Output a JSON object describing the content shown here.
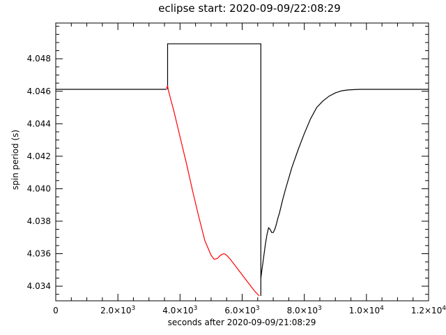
{
  "chart_data": {
    "type": "line",
    "title": "eclipse start: 2020-09-09/22:08:29",
    "xlabel": "seconds after 2020-09-09/21:08:29",
    "ylabel": "spin period (s)",
    "xlim": [
      0,
      12000
    ],
    "ylim": [
      4.0331,
      4.0502
    ],
    "x_ticks": [
      {
        "value": 0,
        "label": "0",
        "sup": ""
      },
      {
        "value": 2000,
        "label": "2.0×10",
        "sup": "3"
      },
      {
        "value": 4000,
        "label": "4.0×10",
        "sup": "3"
      },
      {
        "value": 6000,
        "label": "6.0×10",
        "sup": "3"
      },
      {
        "value": 8000,
        "label": "8.0×10",
        "sup": "3"
      },
      {
        "value": 10000,
        "label": "1.0×10",
        "sup": "4"
      },
      {
        "value": 12000,
        "label": "1.2×10",
        "sup": "4"
      }
    ],
    "y_ticks": [
      {
        "value": 4.034,
        "label": "4.034"
      },
      {
        "value": 4.036,
        "label": "4.036"
      },
      {
        "value": 4.038,
        "label": "4.038"
      },
      {
        "value": 4.04,
        "label": "4.040"
      },
      {
        "value": 4.042,
        "label": "4.042"
      },
      {
        "value": 4.044,
        "label": "4.044"
      },
      {
        "value": 4.046,
        "label": "4.046"
      },
      {
        "value": 4.048,
        "label": "4.048"
      }
    ],
    "x_minor_step": 500,
    "y_minor_step": 0.0005,
    "grid": false,
    "series": [
      {
        "color": "#000000",
        "x": [
          0,
          3550,
          3560
        ],
        "y": [
          4.04612,
          4.04612,
          4.04615
        ]
      },
      {
        "color": "#000000",
        "x": [
          3600,
          3600,
          6600,
          6600
        ],
        "y": [
          4.04612,
          4.04892,
          4.04892,
          4.0334
        ]
      },
      {
        "color": "#ff0000",
        "x": [
          3560,
          3580,
          3600,
          3620,
          3700,
          3800,
          4000,
          4200,
          4400,
          4600,
          4800,
          5000,
          5100,
          5200,
          5300,
          5400,
          5450,
          5500,
          5600,
          5800,
          6000,
          6200,
          6400,
          6550
        ],
        "y": [
          4.04623,
          4.0462,
          4.04635,
          4.0461,
          4.0455,
          4.0448,
          4.0432,
          4.0416,
          4.0399,
          4.0383,
          4.0368,
          4.0359,
          4.03565,
          4.0357,
          4.0359,
          4.036,
          4.03598,
          4.0359,
          4.0357,
          4.0352,
          4.0347,
          4.0342,
          4.0337,
          4.0334
        ]
      },
      {
        "color": "#000000",
        "x": [
          6600,
          6650,
          6700,
          6750,
          6800,
          6850,
          6900,
          6950,
          7000,
          7050,
          7100,
          7150,
          7200,
          7300,
          7400,
          7600,
          7800,
          8000,
          8200,
          8400,
          8600,
          8800,
          9000,
          9200,
          9400,
          9600,
          9800,
          10000,
          10200,
          10400,
          11000,
          12000
        ],
        "y": [
          4.0345,
          4.0352,
          4.0359,
          4.0366,
          4.0372,
          4.0376,
          4.0375,
          4.0373,
          4.0373,
          4.0375,
          4.0378,
          4.0382,
          4.0385,
          4.0393,
          4.04,
          4.0413,
          4.0424,
          4.0434,
          4.0443,
          4.045,
          4.0454,
          4.0457,
          4.0459,
          4.04603,
          4.04608,
          4.0461,
          4.04612,
          4.04612,
          4.04612,
          4.04612,
          4.04612,
          4.04612
        ]
      }
    ]
  }
}
